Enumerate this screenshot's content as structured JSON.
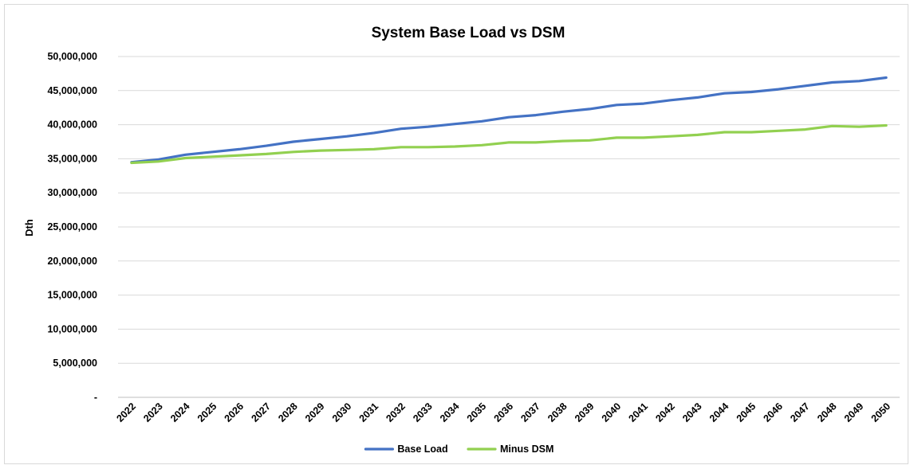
{
  "chart_data": {
    "type": "line",
    "title": "System Base Load vs DSM",
    "ylabel": "Dth",
    "xlabel": "",
    "ylim": [
      0,
      50000000
    ],
    "y_tick_values": [
      0,
      5000000,
      10000000,
      15000000,
      20000000,
      25000000,
      30000000,
      35000000,
      40000000,
      45000000,
      50000000
    ],
    "y_tick_labels": [
      "-",
      "5,000,000",
      "10,000,000",
      "15,000,000",
      "20,000,000",
      "25,000,000",
      "30,000,000",
      "35,000,000",
      "40,000,000",
      "45,000,000",
      "50,000,000"
    ],
    "grid": true,
    "legend_position": "bottom",
    "categories": [
      "2022",
      "2023",
      "2024",
      "2025",
      "2026",
      "2027",
      "2028",
      "2029",
      "2030",
      "2031",
      "2032",
      "2033",
      "2034",
      "2035",
      "2036",
      "2037",
      "2038",
      "2039",
      "2040",
      "2041",
      "2042",
      "2043",
      "2044",
      "2045",
      "2046",
      "2047",
      "2048",
      "2049",
      "2050"
    ],
    "series": [
      {
        "name": "Base Load",
        "color": "#4472c4",
        "values": [
          34500000,
          34900000,
          35600000,
          36000000,
          36400000,
          36900000,
          37500000,
          37900000,
          38300000,
          38800000,
          39400000,
          39700000,
          40100000,
          40500000,
          41100000,
          41400000,
          41900000,
          42300000,
          42900000,
          43100000,
          43600000,
          44000000,
          44600000,
          44800000,
          45200000,
          45700000,
          46200000,
          46400000,
          46900000
        ]
      },
      {
        "name": "Minus DSM",
        "color": "#92d050",
        "values": [
          34400000,
          34600000,
          35100000,
          35300000,
          35500000,
          35700000,
          36000000,
          36200000,
          36300000,
          36400000,
          36700000,
          36700000,
          36800000,
          37000000,
          37400000,
          37400000,
          37600000,
          37700000,
          38100000,
          38100000,
          38300000,
          38500000,
          38900000,
          38900000,
          39100000,
          39300000,
          39800000,
          39700000,
          39900000
        ]
      }
    ]
  }
}
